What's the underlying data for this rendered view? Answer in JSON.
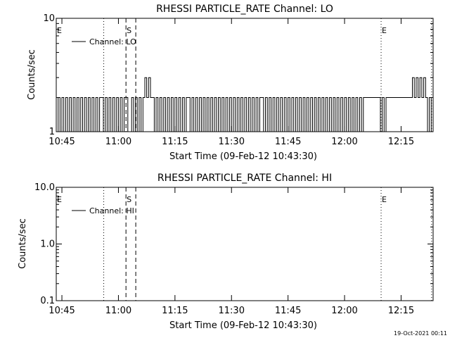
{
  "footer_timestamp": "19-Oct-2021 00:11",
  "chart_data": [
    {
      "type": "line",
      "title": "RHESSI PARTICLE_RATE Channel: LO",
      "xlabel": "Start Time (09-Feb-12 10:43:30)",
      "ylabel": "Counts/sec",
      "x_unit": "minutes after 10:43:30",
      "xlim": [
        0,
        100
      ],
      "ylim": [
        1,
        10
      ],
      "y_scale": "log",
      "x_tick_values": [
        1.5,
        16.5,
        31.5,
        46.5,
        61.5,
        76.5,
        91.5
      ],
      "x_tick_labels": [
        "10:45",
        "11:00",
        "11:15",
        "11:30",
        "11:45",
        "12:00",
        "12:15"
      ],
      "y_tick_values": [
        1,
        10
      ],
      "y_tick_labels": [
        "1",
        "10"
      ],
      "legend": "Channel: LO",
      "legend_position": "top-left",
      "markers": [
        {
          "label": "E",
          "x": 0.0,
          "style": "dotted"
        },
        {
          "label": "",
          "x": 12.6,
          "style": "dotted"
        },
        {
          "label": "S",
          "x": 18.5,
          "style": "dashed"
        },
        {
          "label": "",
          "x": 21.1,
          "style": "dashed"
        },
        {
          "label": "E",
          "x": 86.2,
          "style": "dotted"
        },
        {
          "label": "",
          "x": 99.6,
          "style": "dotted"
        }
      ],
      "series": [
        {
          "values": [
            1,
            2,
            1,
            2,
            1,
            2,
            1,
            2,
            1,
            2,
            1,
            2,
            1,
            2,
            1,
            2,
            1,
            2,
            1,
            2,
            1,
            2,
            1,
            2,
            2,
            1,
            2,
            1,
            2,
            1,
            2,
            1,
            2,
            1,
            2,
            1,
            2,
            2,
            1,
            1,
            2,
            1,
            2,
            1,
            2,
            1,
            2,
            3,
            2,
            3,
            2,
            2,
            1,
            2,
            1,
            2,
            1,
            2,
            1,
            2,
            1,
            2,
            1,
            2,
            1,
            2,
            1,
            2,
            1,
            2,
            2,
            1,
            2,
            1,
            2,
            1,
            2,
            1,
            2,
            1,
            2,
            1,
            2,
            1,
            2,
            1,
            2,
            1,
            2,
            1,
            2,
            1,
            2,
            1,
            2,
            1,
            2,
            1,
            2,
            1,
            2,
            1,
            2,
            1,
            2,
            1,
            2,
            1,
            2,
            2,
            1,
            2,
            1,
            2,
            1,
            2,
            1,
            2,
            1,
            2,
            1,
            2,
            1,
            2,
            1,
            2,
            1,
            2,
            1,
            2,
            1,
            2,
            1,
            2,
            1,
            2,
            1,
            2,
            1,
            2,
            1,
            2,
            1,
            2,
            1,
            2,
            1,
            2,
            1,
            2,
            1,
            2,
            1,
            2,
            1,
            2,
            1,
            2,
            1,
            2,
            1,
            2,
            1,
            2,
            2,
            2,
            2,
            2,
            2,
            2,
            2,
            2,
            1,
            2,
            1,
            2,
            2,
            2,
            2,
            2,
            2,
            2,
            2,
            2,
            2,
            2,
            2,
            2,
            2,
            3,
            2,
            3,
            2,
            3,
            2,
            3,
            2,
            1,
            2,
            1
          ]
        }
      ]
    },
    {
      "type": "line",
      "title": "RHESSI PARTICLE_RATE Channel: HI",
      "xlabel": "Start Time (09-Feb-12 10:43:30)",
      "ylabel": "Counts/sec",
      "x_unit": "minutes after 10:43:30",
      "xlim": [
        0,
        100
      ],
      "ylim": [
        0.1,
        10
      ],
      "y_scale": "log",
      "x_tick_values": [
        1.5,
        16.5,
        31.5,
        46.5,
        61.5,
        76.5,
        91.5
      ],
      "x_tick_labels": [
        "10:45",
        "11:00",
        "11:15",
        "11:30",
        "11:45",
        "12:00",
        "12:15"
      ],
      "y_tick_values": [
        0.1,
        1.0,
        10.0
      ],
      "y_tick_labels": [
        "0.1",
        "1.0",
        "10.0"
      ],
      "legend": "Channel: HI",
      "legend_position": "top-left",
      "markers": [
        {
          "label": "E",
          "x": 0.0,
          "style": "dotted"
        },
        {
          "label": "",
          "x": 12.6,
          "style": "dotted"
        },
        {
          "label": "S",
          "x": 18.5,
          "style": "dashed"
        },
        {
          "label": "",
          "x": 21.1,
          "style": "dashed"
        },
        {
          "label": "E",
          "x": 86.2,
          "style": "dotted"
        },
        {
          "label": "",
          "x": 99.6,
          "style": "dotted"
        }
      ],
      "series": [
        {
          "values": []
        }
      ]
    }
  ]
}
